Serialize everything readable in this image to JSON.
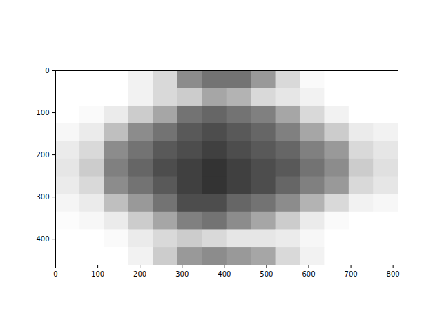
{
  "chart_data": {
    "type": "heatmap",
    "xlim": [
      0,
      812
    ],
    "ylim": [
      462,
      0
    ],
    "xticks": [
      0,
      100,
      200,
      300,
      400,
      500,
      600,
      700,
      800
    ],
    "yticks": [
      0,
      100,
      200,
      300,
      400
    ],
    "color": "#000000",
    "zlim": [
      0,
      1
    ],
    "x_edges": [
      0,
      58,
      116,
      174,
      232,
      290,
      348,
      406,
      464,
      522,
      580,
      638,
      696,
      754,
      812
    ],
    "y_edges": [
      0,
      42,
      84,
      126,
      168,
      210,
      252,
      294,
      336,
      378,
      420,
      462
    ],
    "z": [
      [
        0,
        0,
        0,
        0.05,
        0.15,
        0.45,
        0.55,
        0.55,
        0.4,
        0.15,
        0.02,
        0,
        0,
        0
      ],
      [
        0,
        0,
        0,
        0.05,
        0.15,
        0.2,
        0.35,
        0.3,
        0.15,
        0.1,
        0.05,
        0,
        0,
        0
      ],
      [
        0,
        0.02,
        0.08,
        0.2,
        0.35,
        0.55,
        0.6,
        0.55,
        0.5,
        0.35,
        0.15,
        0.05,
        0,
        0
      ],
      [
        0.03,
        0.08,
        0.25,
        0.45,
        0.55,
        0.65,
        0.7,
        0.65,
        0.6,
        0.5,
        0.35,
        0.2,
        0.08,
        0.05
      ],
      [
        0.08,
        0.15,
        0.45,
        0.55,
        0.65,
        0.7,
        0.75,
        0.7,
        0.65,
        0.6,
        0.5,
        0.4,
        0.15,
        0.1
      ],
      [
        0.1,
        0.2,
        0.5,
        0.6,
        0.7,
        0.75,
        0.8,
        0.75,
        0.7,
        0.65,
        0.55,
        0.45,
        0.2,
        0.12
      ],
      [
        0.08,
        0.15,
        0.45,
        0.55,
        0.65,
        0.75,
        0.8,
        0.75,
        0.7,
        0.6,
        0.5,
        0.4,
        0.15,
        0.1
      ],
      [
        0.04,
        0.08,
        0.25,
        0.4,
        0.55,
        0.7,
        0.7,
        0.6,
        0.55,
        0.45,
        0.3,
        0.15,
        0.05,
        0.03
      ],
      [
        0.01,
        0.03,
        0.08,
        0.2,
        0.35,
        0.5,
        0.55,
        0.45,
        0.35,
        0.2,
        0.08,
        0.02,
        0,
        0
      ],
      [
        0,
        0,
        0.02,
        0.08,
        0.15,
        0.2,
        0.15,
        0.1,
        0.1,
        0.08,
        0.03,
        0,
        0,
        0
      ],
      [
        0,
        0,
        0,
        0.05,
        0.2,
        0.4,
        0.45,
        0.4,
        0.35,
        0.15,
        0.05,
        0,
        0,
        0
      ]
    ]
  }
}
